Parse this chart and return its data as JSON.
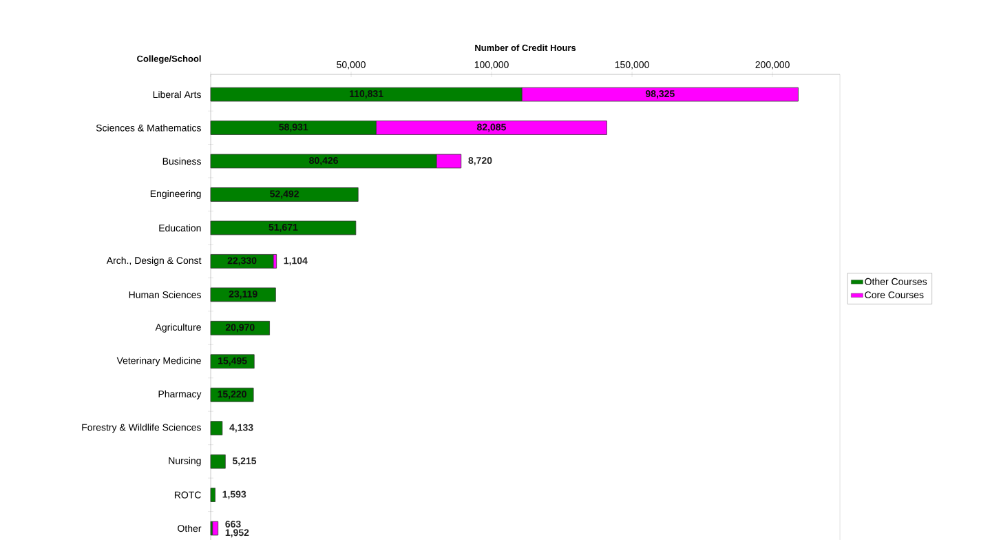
{
  "chart_data": {
    "type": "bar",
    "orientation": "horizontal",
    "stacked": true,
    "xlabel": "Number of Credit Hours",
    "ylabel": "College/School",
    "categories": [
      "Liberal Arts",
      "Sciences & Mathematics",
      "Business",
      "Engineering",
      "Education",
      "Arch., Design & Const",
      "Human Sciences",
      "Agriculture",
      "Veterinary Medicine",
      "Pharmacy",
      "Forestry & Wildlife Sciences",
      "Nursing",
      "ROTC",
      "Other"
    ],
    "series": [
      {
        "name": "Other Courses",
        "color": "#008000",
        "values": [
          110831,
          58931,
          80426,
          52492,
          51671,
          22330,
          23119,
          20970,
          15495,
          15220,
          4133,
          5215,
          1593,
          663
        ],
        "value_labels": [
          "110,831",
          "58,931",
          "80,426",
          "52,492",
          "51,671",
          "22,330",
          "23,119",
          "20,970",
          "15,495",
          "15,220",
          "4,133",
          "5,215",
          "1,593",
          "663"
        ]
      },
      {
        "name": "Core Courses",
        "color": "#ff00ff",
        "values": [
          98325,
          82085,
          8720,
          null,
          null,
          1104,
          null,
          null,
          null,
          null,
          null,
          null,
          null,
          1952
        ],
        "value_labels": [
          "98,325",
          "82,085",
          "8,720",
          null,
          null,
          "1,104",
          null,
          null,
          null,
          null,
          null,
          null,
          null,
          "1,952"
        ]
      }
    ],
    "xlim": [
      0,
      224000
    ],
    "xticks": [
      {
        "value": 0,
        "label": null
      },
      {
        "value": 50000,
        "label": "50,000"
      },
      {
        "value": 100000,
        "label": "100,000"
      },
      {
        "value": 150000,
        "label": "150,000"
      },
      {
        "value": 200000,
        "label": "200,000"
      }
    ],
    "legend": "right"
  }
}
